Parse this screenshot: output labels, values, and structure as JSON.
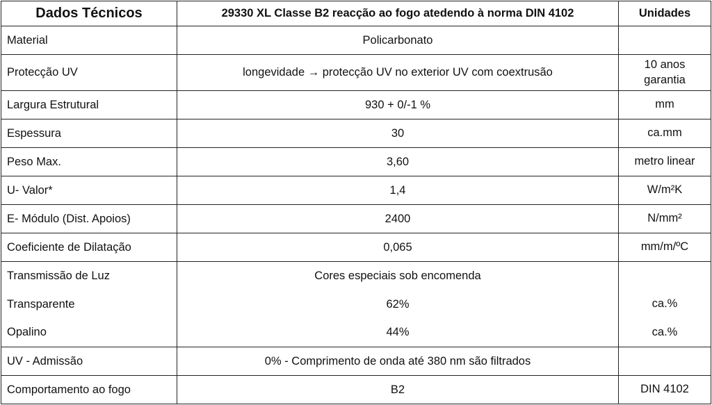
{
  "header": {
    "col1": "Dados Técnicos",
    "col2": "29330 XL Classe B2 reacção ao fogo atedendo à norma DIN 4102",
    "col3": "Unidades"
  },
  "rows": [
    {
      "label": "Material",
      "value": "Policarbonato",
      "unit": ""
    },
    {
      "label": "Protecção UV",
      "value": "longevidade → protecção UV no exterior UV com coextrusão",
      "unit": "10 anos garantia"
    },
    {
      "label": "Largura Estrutural",
      "value": "930 + 0/-1 %",
      "unit": "mm"
    },
    {
      "label": "Espessura",
      "value": "30",
      "unit": "ca.mm"
    },
    {
      "label": "Peso Max.",
      "value": "3,60",
      "unit": "metro linear"
    },
    {
      "label": "U- Valor*",
      "value": "1,4",
      "unit": "W/m²K"
    },
    {
      "label": "E- Módulo (Dist. Apoios)",
      "value": "2400",
      "unit": "N/mm²"
    },
    {
      "label": "Coeficiente de Dilatação",
      "value": "0,065",
      "unit": "mm/m/ºC"
    },
    {
      "label": "Transmissão de Luz",
      "value": "Cores especiais sob encomenda",
      "unit": ""
    },
    {
      "label": "Transparente",
      "value": "62%",
      "unit": "ca.%"
    },
    {
      "label": "Opalino",
      "value": "44%",
      "unit": "ca.%"
    },
    {
      "label": "UV - Admissão",
      "value": "0% - Comprimento de onda até 380 nm são filtrados",
      "unit": ""
    },
    {
      "label": "Comportamento ao fogo",
      "value": "B2",
      "unit": "DIN 4102"
    }
  ]
}
